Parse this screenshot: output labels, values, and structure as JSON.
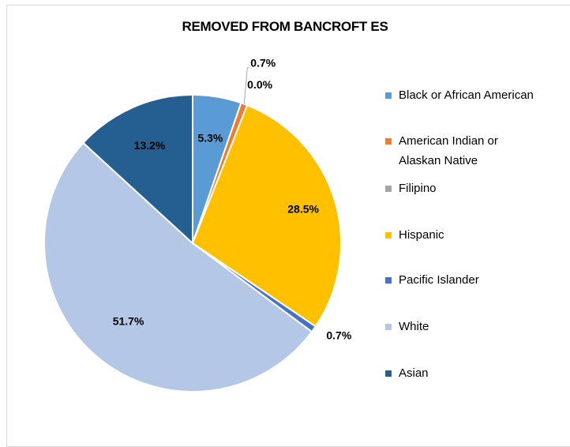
{
  "chart_data": {
    "type": "pie",
    "title": "REMOVED FROM BANCROFT ES",
    "slices": [
      {
        "name": "Black or African American",
        "value": 5.3,
        "label": "5.3%",
        "color": "#5B9BD5"
      },
      {
        "name": "American Indian or Alaskan Native",
        "value": 0.7,
        "label": "0.7%",
        "color": "#ED7D31"
      },
      {
        "name": "Filipino",
        "value": 0.0,
        "label": "0.0%",
        "color": "#A5A5A5"
      },
      {
        "name": "Hispanic",
        "value": 28.5,
        "label": "28.5%",
        "color": "#FFC000"
      },
      {
        "name": "Pacific Islander",
        "value": 0.7,
        "label": "0.7%",
        "color": "#4472C4"
      },
      {
        "name": "White",
        "value": 51.7,
        "label": "51.7%",
        "color": "#B4C7E7"
      },
      {
        "name": "Asian",
        "value": 13.2,
        "label": "13.2%",
        "color": "#255E91"
      }
    ],
    "legend": {
      "position": "right",
      "entries": [
        {
          "line1": "Black or African American",
          "line2": ""
        },
        {
          "line1": "American Indian or",
          "line2": "Alaskan Native"
        },
        {
          "line1": "Filipino",
          "line2": ""
        },
        {
          "line1": "Hispanic",
          "line2": ""
        },
        {
          "line1": "Pacific Islander",
          "line2": ""
        },
        {
          "line1": "White",
          "line2": ""
        },
        {
          "line1": "Asian",
          "line2": ""
        }
      ]
    }
  }
}
